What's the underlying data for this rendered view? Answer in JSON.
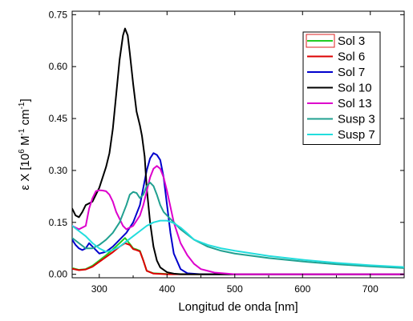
{
  "chart_data": {
    "type": "line",
    "title": "",
    "xlabel": "Longitud de onda [nm]",
    "ylabel_prefix": "ε X [10",
    "ylabel_exp1": "6",
    "ylabel_mid": " M",
    "ylabel_exp2": "-1",
    "ylabel_mid2": " cm",
    "ylabel_exp3": "-1",
    "ylabel_suffix": "]",
    "xlim": [
      260,
      750
    ],
    "ylim": [
      -0.01,
      0.76
    ],
    "xticks": [
      300,
      400,
      500,
      600,
      700
    ],
    "xtick_labels": [
      "300",
      "400",
      "500",
      "600",
      "700"
    ],
    "yticks": [
      0.0,
      0.15,
      0.3,
      0.45,
      0.6,
      0.75
    ],
    "ytick_labels": [
      "0.00",
      "0.15",
      "0.30",
      "0.45",
      "0.60",
      "0.75"
    ],
    "grid": false,
    "legend_position": "top-right",
    "series": [
      {
        "name": "Sol 3",
        "color": "#22cc22",
        "x": [
          260,
          270,
          280,
          290,
          300,
          310,
          320,
          330,
          338,
          345,
          350,
          355,
          360,
          365,
          370,
          380,
          400,
          450,
          500,
          750
        ],
        "y": [
          0.018,
          0.013,
          0.015,
          0.025,
          0.04,
          0.055,
          0.072,
          0.09,
          0.105,
          0.088,
          0.075,
          0.072,
          0.068,
          0.04,
          0.01,
          0.003,
          0.001,
          0.0,
          0.0,
          0.0
        ]
      },
      {
        "name": "Sol 6",
        "color": "#dd0000",
        "x": [
          260,
          270,
          280,
          290,
          300,
          310,
          320,
          330,
          338,
          345,
          350,
          355,
          360,
          365,
          370,
          380,
          400,
          450,
          500,
          750
        ],
        "y": [
          0.016,
          0.012,
          0.014,
          0.022,
          0.036,
          0.05,
          0.064,
          0.08,
          0.09,
          0.085,
          0.073,
          0.07,
          0.066,
          0.04,
          0.01,
          0.002,
          0.0,
          0.0,
          0.0,
          0.0
        ]
      },
      {
        "name": "Sol 7",
        "color": "#0000cc",
        "x": [
          260,
          265,
          270,
          275,
          280,
          285,
          290,
          300,
          310,
          320,
          330,
          340,
          350,
          360,
          365,
          370,
          375,
          380,
          385,
          390,
          395,
          400,
          405,
          410,
          420,
          430,
          450,
          750
        ],
        "y": [
          0.1,
          0.085,
          0.075,
          0.07,
          0.075,
          0.09,
          0.08,
          0.06,
          0.065,
          0.08,
          0.1,
          0.12,
          0.15,
          0.2,
          0.25,
          0.3,
          0.335,
          0.35,
          0.345,
          0.33,
          0.28,
          0.2,
          0.12,
          0.06,
          0.015,
          0.003,
          0.0,
          0.0
        ]
      },
      {
        "name": "Sol 10",
        "color": "#000000",
        "x": [
          260,
          265,
          270,
          275,
          280,
          290,
          300,
          310,
          315,
          320,
          325,
          330,
          335,
          338,
          342,
          345,
          350,
          355,
          360,
          363,
          367,
          370,
          375,
          380,
          385,
          390,
          400,
          410,
          420,
          430,
          750
        ],
        "y": [
          0.19,
          0.17,
          0.165,
          0.18,
          0.2,
          0.21,
          0.25,
          0.31,
          0.35,
          0.42,
          0.52,
          0.62,
          0.69,
          0.71,
          0.69,
          0.64,
          0.55,
          0.47,
          0.43,
          0.4,
          0.34,
          0.25,
          0.15,
          0.08,
          0.04,
          0.02,
          0.006,
          0.002,
          0.0,
          0.0,
          0.0
        ]
      },
      {
        "name": "Sol 13",
        "color": "#dd00cc",
        "x": [
          260,
          270,
          280,
          285,
          290,
          295,
          300,
          305,
          310,
          315,
          320,
          325,
          330,
          335,
          340,
          350,
          360,
          365,
          370,
          375,
          380,
          385,
          390,
          395,
          400,
          410,
          420,
          430,
          440,
          450,
          470,
          500,
          750
        ],
        "y": [
          0.14,
          0.13,
          0.14,
          0.19,
          0.22,
          0.24,
          0.243,
          0.242,
          0.24,
          0.23,
          0.21,
          0.18,
          0.16,
          0.14,
          0.13,
          0.14,
          0.17,
          0.2,
          0.24,
          0.28,
          0.305,
          0.313,
          0.305,
          0.28,
          0.24,
          0.15,
          0.09,
          0.055,
          0.03,
          0.015,
          0.005,
          0.0,
          0.0
        ]
      },
      {
        "name": "Susp 3",
        "color": "#20a090",
        "x": [
          260,
          270,
          280,
          290,
          300,
          310,
          320,
          330,
          340,
          345,
          350,
          355,
          360,
          365,
          370,
          375,
          380,
          385,
          390,
          395,
          400,
          410,
          420,
          440,
          460,
          480,
          500,
          550,
          600,
          650,
          700,
          750
        ],
        "y": [
          0.105,
          0.09,
          0.075,
          0.075,
          0.085,
          0.1,
          0.12,
          0.15,
          0.2,
          0.23,
          0.238,
          0.235,
          0.22,
          0.23,
          0.255,
          0.265,
          0.255,
          0.23,
          0.2,
          0.18,
          0.17,
          0.15,
          0.13,
          0.1,
          0.08,
          0.068,
          0.06,
          0.047,
          0.037,
          0.029,
          0.023,
          0.018
        ]
      },
      {
        "name": "Susp 7",
        "color": "#22dddd",
        "x": [
          260,
          270,
          280,
          290,
          300,
          310,
          320,
          330,
          340,
          350,
          360,
          370,
          380,
          390,
          400,
          410,
          420,
          430,
          440,
          460,
          480,
          500,
          550,
          600,
          650,
          700,
          750
        ],
        "y": [
          0.14,
          0.125,
          0.11,
          0.09,
          0.075,
          0.065,
          0.07,
          0.08,
          0.095,
          0.11,
          0.125,
          0.14,
          0.15,
          0.155,
          0.155,
          0.148,
          0.135,
          0.118,
          0.1,
          0.085,
          0.075,
          0.068,
          0.053,
          0.042,
          0.033,
          0.026,
          0.021
        ]
      }
    ]
  }
}
